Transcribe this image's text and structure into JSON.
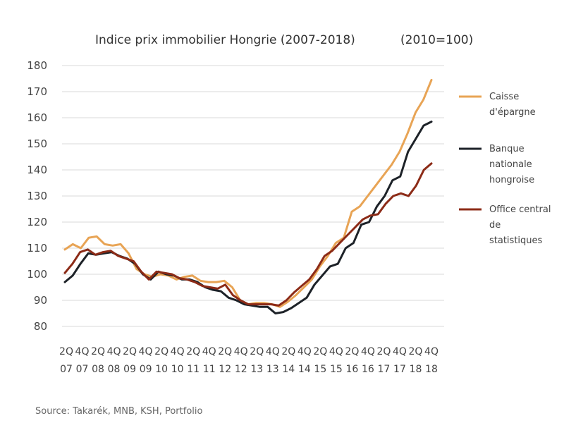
{
  "chart_data": {
    "type": "line",
    "title": "Indice prix immobilier Hongrie (2007-2018)",
    "subtitle": "(2010=100)",
    "source": "Source:  Takarék, MNB, KSH, Portfolio",
    "ylim": [
      80,
      180
    ],
    "yticks": [
      180,
      170,
      160,
      150,
      140,
      130,
      120,
      110,
      100,
      90,
      80
    ],
    "grid": true,
    "legend_position": "right",
    "x_tick_labels": [
      [
        "2Q",
        "07"
      ],
      [
        "4Q",
        "07"
      ],
      [
        "2Q",
        "08"
      ],
      [
        "4Q",
        "08"
      ],
      [
        "2Q",
        "09"
      ],
      [
        "4Q",
        "09"
      ],
      [
        "2Q",
        "10"
      ],
      [
        "4Q",
        "10"
      ],
      [
        "2Q",
        "11"
      ],
      [
        "4Q",
        "11"
      ],
      [
        "2Q",
        "12"
      ],
      [
        "4Q",
        "12"
      ],
      [
        "2Q",
        "13"
      ],
      [
        "4Q",
        "13"
      ],
      [
        "2Q",
        "14"
      ],
      [
        "4Q",
        "14"
      ],
      [
        "2Q",
        "15"
      ],
      [
        "4Q",
        "15"
      ],
      [
        "2Q",
        "16"
      ],
      [
        "4Q",
        "16"
      ],
      [
        "2Q",
        "17"
      ],
      [
        "4Q",
        "17"
      ],
      [
        "2Q",
        "18"
      ],
      [
        "4Q",
        "18"
      ]
    ],
    "series": [
      {
        "name": "Caisse d'épargne",
        "legend_lines": [
          "Caisse",
          "d'épargne"
        ],
        "color": "#e8a455",
        "values": [
          109.5,
          111.5,
          110,
          114,
          114.5,
          111.5,
          111,
          111.5,
          108,
          102,
          100,
          99,
          100,
          99.5,
          98,
          99,
          99.5,
          97.5,
          97,
          97,
          97.5,
          95,
          90,
          88.5,
          89,
          89,
          88.5,
          87.5,
          89.5,
          92,
          95,
          98,
          103,
          107,
          112,
          114,
          124,
          126,
          130,
          134,
          138,
          142,
          147,
          154,
          162,
          167,
          174.5
        ]
      },
      {
        "name": "Banque nationale hongroise",
        "legend_lines": [
          "Banque",
          "nationale",
          "hongroise"
        ],
        "color": "#1d2228",
        "values": [
          97,
          99.5,
          104,
          108,
          107.5,
          108,
          108.5,
          107,
          106,
          104,
          100,
          98,
          101,
          100,
          99.5,
          98,
          98,
          97,
          95,
          94,
          93.5,
          91,
          90,
          88.5,
          88,
          87.5,
          87.5,
          85,
          85.5,
          87,
          89,
          91,
          96,
          99.5,
          103,
          104,
          110,
          112,
          119,
          120,
          126,
          130,
          136,
          137.5,
          147,
          152,
          157,
          158.5
        ]
      },
      {
        "name": "Office central de statistiques",
        "legend_lines": [
          "Office central",
          "de",
          "statistiques"
        ],
        "color": "#8c2b17",
        "values": [
          100.5,
          104,
          108.5,
          109.5,
          107.5,
          108.5,
          109,
          107,
          106,
          105,
          101,
          98,
          101,
          100.5,
          100,
          98.5,
          98,
          97,
          95.5,
          95,
          94.5,
          96,
          92,
          90,
          88.5,
          88.5,
          88.5,
          88.5,
          88,
          90,
          93,
          95.5,
          98,
          102,
          107,
          109,
          112,
          115,
          118,
          121,
          122.5,
          123,
          127,
          130,
          131,
          130,
          134,
          140,
          142.5
        ]
      }
    ]
  }
}
